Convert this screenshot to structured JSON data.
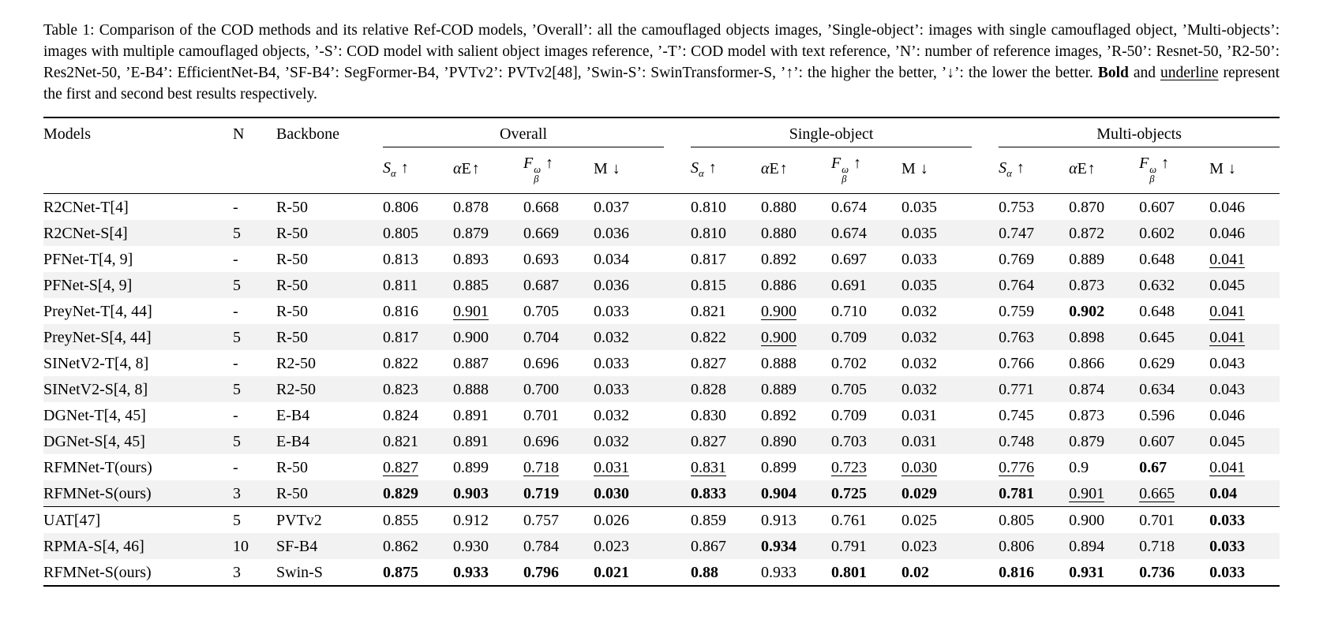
{
  "page": {
    "background": "#ffffff",
    "text_color": "#000000",
    "shaded_row_color": "#f2f2f2"
  },
  "caption": {
    "segments": [
      {
        "text": "Table 1: Comparison of the COD methods and its relative Ref-COD models, ’Overall’: all the camouflaged objects images, ’Single-object’: images with single camouflaged object, ’Multi-objects’: images with multiple camouflaged objects, ’-S’: COD model with salient object images reference, ’-T’: COD model with text reference, ’N’: number of reference images, ’R-50’: Resnet-50, ’R2-50’: Res2Net-50, ’E-B4’: EfficientNet-B4, ’SF-B4’: SegFormer-B4, ’PVTv2’: PVTv2[48], ’Swin-S’: SwinTransformer-S, ’↑’: the higher the better, ’↓’: the lower the better. ",
        "style": ""
      },
      {
        "text": "Bold",
        "style": "bold"
      },
      {
        "text": " and ",
        "style": ""
      },
      {
        "text": "underline",
        "style": "underline"
      },
      {
        "text": " represent the first and second best results respectively.",
        "style": ""
      }
    ]
  },
  "table": {
    "left_headers": [
      "Models",
      "N",
      "Backbone"
    ],
    "groups": [
      "Overall",
      "Single-object",
      "Multi-objects"
    ],
    "metrics": [
      {
        "italic_main": "S",
        "roman_main": "",
        "sub": "α",
        "sup": "",
        "arrow": "↑",
        "gap": true
      },
      {
        "italic_main": "α",
        "roman_main": "E",
        "sub": "",
        "sup": "",
        "arrow": "↑",
        "gap": false
      },
      {
        "italic_main": "F",
        "roman_main": "",
        "sub": "β",
        "sup": "ω",
        "arrow": "↑",
        "gap": true
      },
      {
        "italic_main": "",
        "roman_main": "M",
        "sub": "",
        "sup": "",
        "arrow": "↓",
        "gap": true
      }
    ],
    "sections": [
      {
        "rows": [
          {
            "model": "R2CNet-T[4]",
            "n": "-",
            "backbone": "R-50",
            "values": [
              "0.806",
              "0.878",
              "0.668",
              "0.037",
              "0.810",
              "0.880",
              "0.674",
              "0.035",
              "0.753",
              "0.870",
              "0.607",
              "0.046"
            ],
            "styles": [
              "",
              "",
              "",
              "",
              "",
              "",
              "",
              "",
              "",
              "",
              "",
              ""
            ]
          },
          {
            "model": "R2CNet-S[4]",
            "n": "5",
            "backbone": "R-50",
            "values": [
              "0.805",
              "0.879",
              "0.669",
              "0.036",
              "0.810",
              "0.880",
              "0.674",
              "0.035",
              "0.747",
              "0.872",
              "0.602",
              "0.046"
            ],
            "styles": [
              "",
              "",
              "",
              "",
              "",
              "",
              "",
              "",
              "",
              "",
              "",
              ""
            ]
          },
          {
            "model": "PFNet-T[4, 9]",
            "n": "-",
            "backbone": "R-50",
            "values": [
              "0.813",
              "0.893",
              "0.693",
              "0.034",
              "0.817",
              "0.892",
              "0.697",
              "0.033",
              "0.769",
              "0.889",
              "0.648",
              "0.041"
            ],
            "styles": [
              "",
              "",
              "",
              "",
              "",
              "",
              "",
              "",
              "",
              "",
              "",
              "u"
            ]
          },
          {
            "model": "PFNet-S[4, 9]",
            "n": "5",
            "backbone": "R-50",
            "values": [
              "0.811",
              "0.885",
              "0.687",
              "0.036",
              "0.815",
              "0.886",
              "0.691",
              "0.035",
              "0.764",
              "0.873",
              "0.632",
              "0.045"
            ],
            "styles": [
              "",
              "",
              "",
              "",
              "",
              "",
              "",
              "",
              "",
              "",
              "",
              ""
            ]
          },
          {
            "model": "PreyNet-T[4, 44]",
            "n": "-",
            "backbone": "R-50",
            "values": [
              "0.816",
              "0.901",
              "0.705",
              "0.033",
              "0.821",
              "0.900",
              "0.710",
              "0.032",
              "0.759",
              "0.902",
              "0.648",
              "0.041"
            ],
            "styles": [
              "",
              "u",
              "",
              "",
              "",
              "u",
              "",
              "",
              "",
              "b",
              "",
              "u"
            ]
          },
          {
            "model": "PreyNet-S[4, 44]",
            "n": "5",
            "backbone": "R-50",
            "values": [
              "0.817",
              "0.900",
              "0.704",
              "0.032",
              "0.822",
              "0.900",
              "0.709",
              "0.032",
              "0.763",
              "0.898",
              "0.645",
              "0.041"
            ],
            "styles": [
              "",
              "",
              "",
              "",
              "",
              "u",
              "",
              "",
              "",
              "",
              "",
              "u"
            ]
          },
          {
            "model": "SINetV2-T[4, 8]",
            "n": "-",
            "backbone": "R2-50",
            "values": [
              "0.822",
              "0.887",
              "0.696",
              "0.033",
              "0.827",
              "0.888",
              "0.702",
              "0.032",
              "0.766",
              "0.866",
              "0.629",
              "0.043"
            ],
            "styles": [
              "",
              "",
              "",
              "",
              "",
              "",
              "",
              "",
              "",
              "",
              "",
              ""
            ]
          },
          {
            "model": "SINetV2-S[4, 8]",
            "n": "5",
            "backbone": "R2-50",
            "values": [
              "0.823",
              "0.888",
              "0.700",
              "0.033",
              "0.828",
              "0.889",
              "0.705",
              "0.032",
              "0.771",
              "0.874",
              "0.634",
              "0.043"
            ],
            "styles": [
              "",
              "",
              "",
              "",
              "",
              "",
              "",
              "",
              "",
              "",
              "",
              ""
            ]
          },
          {
            "model": "DGNet-T[4, 45]",
            "n": "-",
            "backbone": "E-B4",
            "values": [
              "0.824",
              "0.891",
              "0.701",
              "0.032",
              "0.830",
              "0.892",
              "0.709",
              "0.031",
              "0.745",
              "0.873",
              "0.596",
              "0.046"
            ],
            "styles": [
              "",
              "",
              "",
              "",
              "",
              "",
              "",
              "",
              "",
              "",
              "",
              ""
            ]
          },
          {
            "model": "DGNet-S[4, 45]",
            "n": "5",
            "backbone": "E-B4",
            "values": [
              "0.821",
              "0.891",
              "0.696",
              "0.032",
              "0.827",
              "0.890",
              "0.703",
              "0.031",
              "0.748",
              "0.879",
              "0.607",
              "0.045"
            ],
            "styles": [
              "",
              "",
              "",
              "",
              "",
              "",
              "",
              "",
              "",
              "",
              "",
              ""
            ]
          },
          {
            "model": "RFMNet-T(ours)",
            "n": "-",
            "backbone": "R-50",
            "values": [
              "0.827",
              "0.899",
              "0.718",
              "0.031",
              "0.831",
              "0.899",
              "0.723",
              "0.030",
              "0.776",
              "0.9",
              "0.67",
              "0.041"
            ],
            "styles": [
              "u",
              "",
              "u",
              "u",
              "u",
              "",
              "u",
              "u",
              "u",
              "",
              "b",
              "u"
            ]
          },
          {
            "model": "RFMNet-S(ours)",
            "n": "3",
            "backbone": "R-50",
            "values": [
              "0.829",
              "0.903",
              "0.719",
              "0.030",
              "0.833",
              "0.904",
              "0.725",
              "0.029",
              "0.781",
              "0.901",
              "0.665",
              "0.04"
            ],
            "styles": [
              "b",
              "b",
              "b",
              "b",
              "b",
              "b",
              "b",
              "b",
              "b",
              "u",
              "u",
              "b"
            ]
          }
        ]
      },
      {
        "rows": [
          {
            "model": "UAT[47]",
            "n": "5",
            "backbone": "PVTv2",
            "values": [
              "0.855",
              "0.912",
              "0.757",
              "0.026",
              "0.859",
              "0.913",
              "0.761",
              "0.025",
              "0.805",
              "0.900",
              "0.701",
              "0.033"
            ],
            "styles": [
              "",
              "",
              "",
              "",
              "",
              "",
              "",
              "",
              "",
              "",
              "",
              "b"
            ]
          },
          {
            "model": "RPMA-S[4, 46]",
            "n": "10",
            "backbone": "SF-B4",
            "values": [
              "0.862",
              "0.930",
              "0.784",
              "0.023",
              "0.867",
              "0.934",
              "0.791",
              "0.023",
              "0.806",
              "0.894",
              "0.718",
              "0.033"
            ],
            "styles": [
              "",
              "",
              "",
              "",
              "",
              "b",
              "",
              "",
              "",
              "",
              "",
              "b"
            ]
          },
          {
            "model": "RFMNet-S(ours)",
            "n": "3",
            "backbone": "Swin-S",
            "values": [
              "0.875",
              "0.933",
              "0.796",
              "0.021",
              "0.88",
              "0.933",
              "0.801",
              "0.02",
              "0.816",
              "0.931",
              "0.736",
              "0.033"
            ],
            "styles": [
              "b",
              "b",
              "b",
              "b",
              "b",
              "",
              "b",
              "b",
              "b",
              "b",
              "b",
              "b"
            ]
          }
        ]
      }
    ]
  }
}
